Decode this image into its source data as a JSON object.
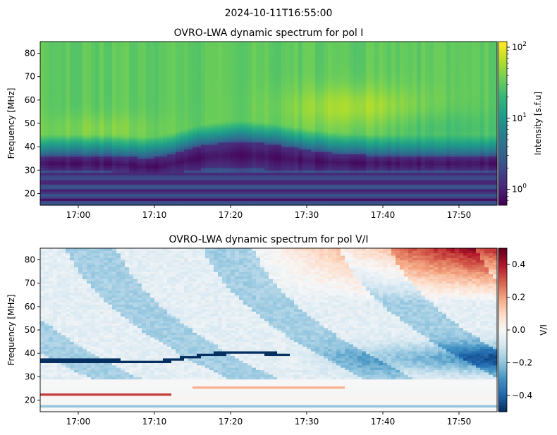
{
  "figure": {
    "suptitle": "2024-10-11T16:55:00"
  },
  "colors": {
    "viridis": [
      "#440154",
      "#482878",
      "#3e4989",
      "#31688e",
      "#26828e",
      "#1f9e89",
      "#35b779",
      "#6ece58",
      "#b5de2b",
      "#fde725"
    ],
    "rdbu_r": [
      "#053061",
      "#2166ac",
      "#4393c3",
      "#92c5de",
      "#d1e5f0",
      "#f7f7f7",
      "#fddbc7",
      "#f4a582",
      "#d6604d",
      "#b2182b",
      "#67001f"
    ]
  },
  "chart_data": [
    {
      "type": "heatmap",
      "title": "OVRO-LWA dynamic spectrum for pol I",
      "xlabel": "",
      "ylabel": "Frequency [MHz]",
      "x_ticks": [
        "17:00",
        "17:10",
        "17:20",
        "17:30",
        "17:40",
        "17:50"
      ],
      "x_tick_minutes": [
        0,
        10,
        20,
        30,
        40,
        50
      ],
      "x_range_minutes": [
        -5,
        55
      ],
      "y_ticks": [
        20,
        30,
        40,
        50,
        60,
        70,
        80
      ],
      "ylim": [
        15,
        85
      ],
      "colorbar": {
        "label": "Intensity [s.f.u]",
        "scale": "log",
        "cmap": "viridis",
        "range": [
          0.6,
          120
        ],
        "ticks": [
          {
            "value": 1,
            "base": "10",
            "exp": "0"
          },
          {
            "value": 10,
            "base": "10",
            "exp": "1"
          },
          {
            "value": 100,
            "base": "10",
            "exp": "2"
          }
        ]
      }
    },
    {
      "type": "heatmap",
      "title": "OVRO-LWA dynamic spectrum for pol V/I",
      "xlabel": "",
      "ylabel": "Frequency [MHz]",
      "x_ticks": [
        "17:00",
        "17:10",
        "17:20",
        "17:30",
        "17:40",
        "17:50"
      ],
      "x_tick_minutes": [
        0,
        10,
        20,
        30,
        40,
        50
      ],
      "x_range_minutes": [
        -5,
        55
      ],
      "y_ticks": [
        20,
        30,
        40,
        50,
        60,
        70,
        80
      ],
      "ylim": [
        15,
        85
      ],
      "colorbar": {
        "label": "V/I",
        "scale": "linear",
        "cmap": "RdBu_r",
        "range": [
          -0.5,
          0.5
        ],
        "ticks": [
          {
            "value": 0.4,
            "text": "0.4"
          },
          {
            "value": 0.2,
            "text": "0.2"
          },
          {
            "value": 0.0,
            "text": "0.0"
          },
          {
            "value": -0.2,
            "text": "−0.2"
          },
          {
            "value": -0.4,
            "text": "−0.4"
          }
        ]
      }
    }
  ]
}
